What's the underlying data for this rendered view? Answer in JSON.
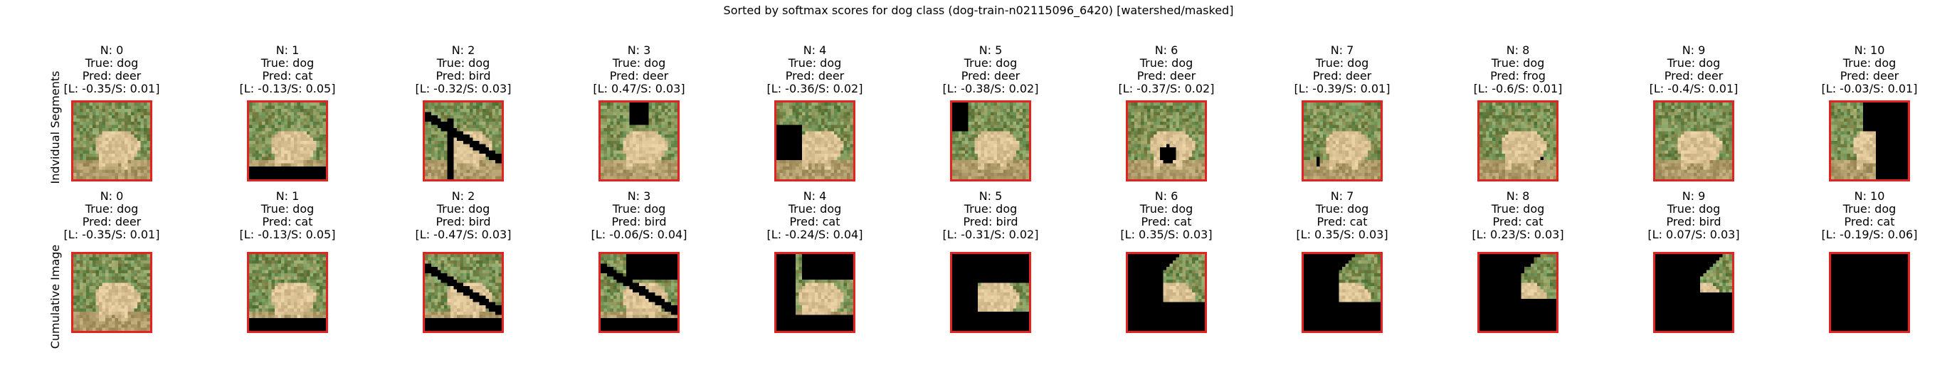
{
  "figure": {
    "title": "Sorted by softmax scores for dog class (dog-train-n02115096_6420) [watershed/masked]",
    "row_labels": [
      "Indvidual Segments",
      "Cumulative Image"
    ],
    "frame_color": "#e32222",
    "rows": [
      {
        "panels": [
          {
            "n": "N: 0",
            "true_label": "True: dog",
            "pred": "Pred: deer",
            "scores": "[L: -0.35/S: 0.01]"
          },
          {
            "n": "N: 1",
            "true_label": "True: dog",
            "pred": "Pred: cat",
            "scores": "[L: -0.13/S: 0.05]"
          },
          {
            "n": "N: 2",
            "true_label": "True: dog",
            "pred": "Pred: bird",
            "scores": "[L: -0.32/S: 0.03]"
          },
          {
            "n": "N: 3",
            "true_label": "True: dog",
            "pred": "Pred: deer",
            "scores": "[L: 0.47/S: 0.03]"
          },
          {
            "n": "N: 4",
            "true_label": "True: dog",
            "pred": "Pred: deer",
            "scores": "[L: -0.36/S: 0.02]"
          },
          {
            "n": "N: 5",
            "true_label": "True: dog",
            "pred": "Pred: deer",
            "scores": "[L: -0.38/S: 0.02]"
          },
          {
            "n": "N: 6",
            "true_label": "True: dog",
            "pred": "Pred: deer",
            "scores": "[L: -0.37/S: 0.02]"
          },
          {
            "n": "N: 7",
            "true_label": "True: dog",
            "pred": "Pred: deer",
            "scores": "[L: -0.39/S: 0.01]"
          },
          {
            "n": "N: 8",
            "true_label": "True: dog",
            "pred": "Pred: frog",
            "scores": "[L: -0.6/S: 0.01]"
          },
          {
            "n": "N: 9",
            "true_label": "True: dog",
            "pred": "Pred: deer",
            "scores": "[L: -0.4/S: 0.01]"
          },
          {
            "n": "N: 10",
            "true_label": "True: dog",
            "pred": "Pred: deer",
            "scores": "[L: -0.03/S: 0.01]"
          }
        ]
      },
      {
        "panels": [
          {
            "n": "N: 0",
            "true_label": "True: dog",
            "pred": "Pred: deer",
            "scores": "[L: -0.35/S: 0.01]"
          },
          {
            "n": "N: 1",
            "true_label": "True: dog",
            "pred": "Pred: cat",
            "scores": "[L: -0.13/S: 0.05]"
          },
          {
            "n": "N: 2",
            "true_label": "True: dog",
            "pred": "Pred: bird",
            "scores": "[L: -0.47/S: 0.03]"
          },
          {
            "n": "N: 3",
            "true_label": "True: dog",
            "pred": "Pred: bird",
            "scores": "[L: -0.06/S: 0.04]"
          },
          {
            "n": "N: 4",
            "true_label": "True: dog",
            "pred": "Pred: cat",
            "scores": "[L: -0.24/S: 0.04]"
          },
          {
            "n": "N: 5",
            "true_label": "True: dog",
            "pred": "Pred: bird",
            "scores": "[L: -0.31/S: 0.02]"
          },
          {
            "n": "N: 6",
            "true_label": "True: dog",
            "pred": "Pred: cat",
            "scores": "[L: 0.35/S: 0.03]"
          },
          {
            "n": "N: 7",
            "true_label": "True: dog",
            "pred": "Pred: cat",
            "scores": "[L: 0.35/S: 0.03]"
          },
          {
            "n": "N: 8",
            "true_label": "True: dog",
            "pred": "Pred: cat",
            "scores": "[L: 0.23/S: 0.03]"
          },
          {
            "n": "N: 9",
            "true_label": "True: dog",
            "pred": "Pred: bird",
            "scores": "[L: 0.07/S: 0.03]"
          },
          {
            "n": "N: 10",
            "true_label": "True: dog",
            "pred": "Pred: cat",
            "scores": "[L: -0.19/S: 0.06]"
          }
        ]
      }
    ]
  }
}
